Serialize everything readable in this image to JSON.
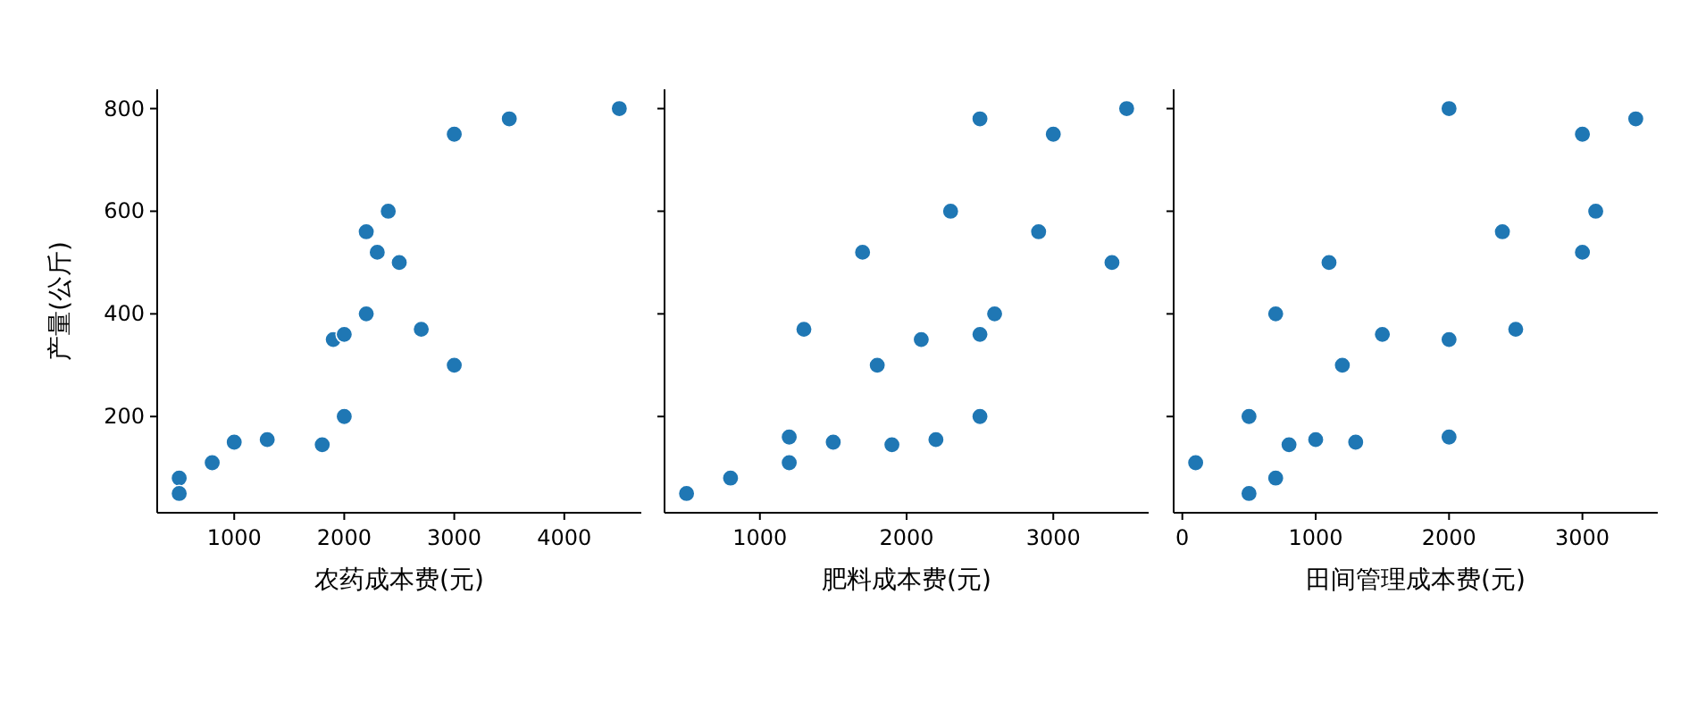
{
  "chart_data": [
    {
      "type": "scatter",
      "xlabel": "农药成本费(元)",
      "ylabel": "产量(公斤)",
      "marker": "circle",
      "color": "#1f77b4",
      "x": [
        500,
        500,
        800,
        1000,
        1300,
        1800,
        2000,
        1900,
        2000,
        2200,
        2200,
        2300,
        2400,
        2500,
        2700,
        3000,
        3000,
        3500,
        4500
      ],
      "values": [
        80,
        50,
        110,
        150,
        155,
        145,
        200,
        350,
        360,
        400,
        560,
        520,
        600,
        500,
        370,
        300,
        750,
        780,
        800
      ],
      "xlim": [
        300,
        4700
      ],
      "xticks": [
        1000,
        2000,
        3000,
        4000
      ],
      "ylim": [
        12.5,
        837.5
      ],
      "yticks": [
        200,
        400,
        600,
        800
      ]
    },
    {
      "type": "scatter",
      "xlabel": "肥料成本费(元)",
      "marker": "circle",
      "color": "#1f77b4",
      "tick_labels": "x",
      "x": [
        500,
        800,
        1200,
        1200,
        1500,
        1900,
        2200,
        2500,
        1800,
        2100,
        2500,
        1300,
        2600,
        3400,
        1700,
        2900,
        2300,
        3000,
        2500,
        3500
      ],
      "values": [
        50,
        80,
        110,
        160,
        150,
        145,
        155,
        200,
        300,
        350,
        360,
        370,
        400,
        500,
        520,
        560,
        600,
        750,
        780,
        800
      ],
      "xlim": [
        350,
        3650
      ],
      "xticks": [
        1000,
        2000,
        3000
      ],
      "ylim": [
        12.5,
        837.5
      ],
      "yticks": [
        200,
        400,
        600,
        800
      ]
    },
    {
      "type": "scatter",
      "xlabel": "田间管理成本费(元)",
      "marker": "circle",
      "color": "#1f77b4",
      "tick_labels": "x",
      "x": [
        100,
        500,
        700,
        500,
        800,
        1000,
        1300,
        2000,
        1200,
        2000,
        1500,
        2500,
        700,
        1100,
        3000,
        2400,
        3100,
        3000,
        3400,
        2000
      ],
      "values": [
        110,
        50,
        80,
        200,
        145,
        155,
        150,
        160,
        300,
        350,
        360,
        370,
        400,
        500,
        520,
        560,
        600,
        750,
        780,
        800
      ],
      "xlim": [
        -65,
        3565
      ],
      "xticks": [
        0,
        1000,
        2000,
        3000
      ],
      "ylim": [
        12.5,
        837.5
      ],
      "yticks": [
        200,
        400,
        600,
        800
      ]
    }
  ]
}
